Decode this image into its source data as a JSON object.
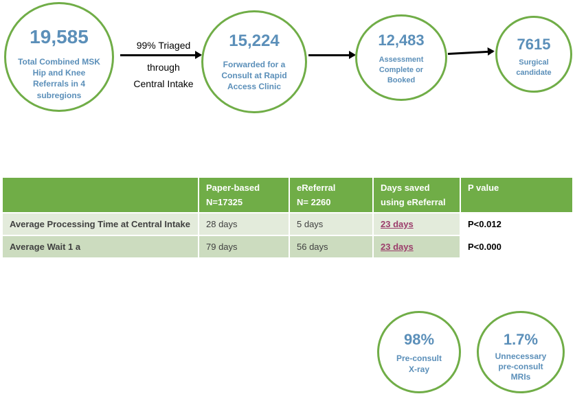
{
  "flow": {
    "step1": {
      "value": "19,585",
      "label": "Total Combined MSK Hip and Knee Referrals in 4 subregions"
    },
    "connector_text": {
      "line1": "99% Triaged",
      "line2": "through",
      "line3": "Central Intake"
    },
    "step2": {
      "value": "15,224",
      "label": "Forwarded for a Consult at Rapid Access Clinic"
    },
    "step3": {
      "value": "12,483",
      "label": "Assessment Complete or Booked"
    },
    "step4": {
      "value": "7615",
      "label": "Surgical candidate"
    }
  },
  "table": {
    "headers": {
      "col1": "",
      "col2_line1": "Paper-based",
      "col2_line2": "N=17325",
      "col3_line1": "eReferral",
      "col3_line2": "N= 2260",
      "col4_line1": "Days saved",
      "col4_line2": "using eReferral",
      "col5": "P value"
    },
    "rows": [
      {
        "metric": "Average Processing Time at Central Intake",
        "paper": "28  days",
        "ereferral": "5 days",
        "saved": "23 days",
        "p": "P<0.012"
      },
      {
        "metric": "Average Wait 1 a",
        "paper": "79 days",
        "ereferral": "56 days",
        "saved": "23 days",
        "p": "P<0.000"
      }
    ]
  },
  "stats": {
    "xray": {
      "value": "98%",
      "label": "Pre-consult X-ray"
    },
    "mri": {
      "value": "1.7%",
      "label": "Unnecessary pre-consult MRIs"
    }
  },
  "colors": {
    "accent_green": "#70ad47",
    "number_blue": "#5b8fb9",
    "saved_purple": "#9b3b6a"
  }
}
